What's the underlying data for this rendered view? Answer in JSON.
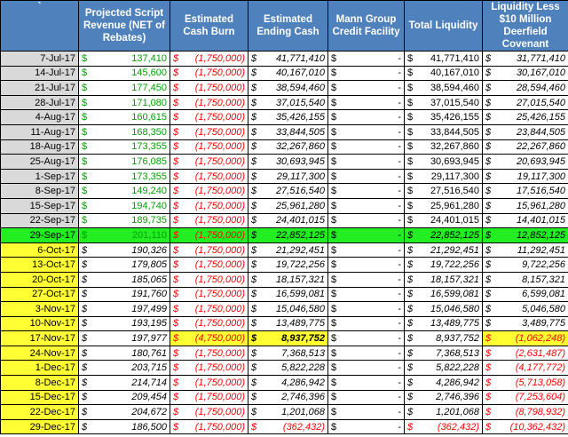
{
  "headers": {
    "corner": "`",
    "revenue": "Projected Script Revenue (NET of Rebates)",
    "burn": "Estimated Cash Burn",
    "ending": "Estimated Ending Cash",
    "mann": "Mann Group Credit Facility",
    "total": "Total Liquidity",
    "covenant": "Liquidity Less $10 Million Deerfield Covenant"
  },
  "currency_symbol": "$",
  "colors": {
    "header_blue": "#4f81bd",
    "history_gray": "#d9d9d9",
    "projection_yellow": "#ffff33",
    "current_green": "#22ee22",
    "revenue_green": "#00a000",
    "negative_red": "#ff0000"
  },
  "rows": [
    {
      "date": "7-Jul-17",
      "revenue": "137,410",
      "burn": "(1,750,000)",
      "ending": "41,771,410",
      "mann": "-",
      "total": "41,771,410",
      "covenant": "31,771,410"
    },
    {
      "date": "14-Jul-17",
      "revenue": "145,600",
      "burn": "(1,750,000)",
      "ending": "40,167,010",
      "mann": "-",
      "total": "40,167,010",
      "covenant": "30,167,010"
    },
    {
      "date": "21-Jul-17",
      "revenue": "177,450",
      "burn": "(1,750,000)",
      "ending": "38,594,460",
      "mann": "-",
      "total": "38,594,460",
      "covenant": "28,594,460"
    },
    {
      "date": "28-Jul-17",
      "revenue": "171,080",
      "burn": "(1,750,000)",
      "ending": "37,015,540",
      "mann": "-",
      "total": "37,015,540",
      "covenant": "27,015,540"
    },
    {
      "date": "4-Aug-17",
      "revenue": "160,615",
      "burn": "(1,750,000)",
      "ending": "35,426,155",
      "mann": "-",
      "total": "35,426,155",
      "covenant": "25,426,155"
    },
    {
      "date": "11-Aug-17",
      "revenue": "168,350",
      "burn": "(1,750,000)",
      "ending": "33,844,505",
      "mann": "-",
      "total": "33,844,505",
      "covenant": "23,844,505"
    },
    {
      "date": "18-Aug-17",
      "revenue": "173,355",
      "burn": "(1,750,000)",
      "ending": "32,267,860",
      "mann": "-",
      "total": "32,267,860",
      "covenant": "22,267,860"
    },
    {
      "date": "25-Aug-17",
      "revenue": "176,085",
      "burn": "(1,750,000)",
      "ending": "30,693,945",
      "mann": "-",
      "total": "30,693,945",
      "covenant": "20,693,945"
    },
    {
      "date": "1-Sep-17",
      "revenue": "173,355",
      "burn": "(1,750,000)",
      "ending": "29,117,300",
      "mann": "-",
      "total": "29,117,300",
      "covenant": "19,117,300"
    },
    {
      "date": "8-Sep-17",
      "revenue": "149,240",
      "burn": "(1,750,000)",
      "ending": "27,516,540",
      "mann": "-",
      "total": "27,516,540",
      "covenant": "17,516,540"
    },
    {
      "date": "15-Sep-17",
      "revenue": "194,740",
      "burn": "(1,750,000)",
      "ending": "25,961,280",
      "mann": "-",
      "total": "25,961,280",
      "covenant": "15,961,280"
    },
    {
      "date": "22-Sep-17",
      "revenue": "189,735",
      "burn": "(1,750,000)",
      "ending": "24,401,015",
      "mann": "-",
      "total": "24,401,015",
      "covenant": "14,401,015"
    },
    {
      "date": "29-Sep-17",
      "revenue": "201,110",
      "burn": "(1,750,000)",
      "ending": "22,852,125",
      "mann": "-",
      "total": "22,852,125",
      "covenant": "12,852,125"
    },
    {
      "date": "6-Oct-17",
      "revenue": "190,326",
      "burn": "(1,750,000)",
      "ending": "21,292,451",
      "mann": "-",
      "total": "21,292,451",
      "covenant": "11,292,451"
    },
    {
      "date": "13-Oct-17",
      "revenue": "179,805",
      "burn": "(1,750,000)",
      "ending": "19,722,256",
      "mann": "-",
      "total": "19,722,256",
      "covenant": "9,722,256"
    },
    {
      "date": "20-Oct-17",
      "revenue": "185,065",
      "burn": "(1,750,000)",
      "ending": "18,157,321",
      "mann": "-",
      "total": "18,157,321",
      "covenant": "8,157,321"
    },
    {
      "date": "27-Oct-17",
      "revenue": "191,760",
      "burn": "(1,750,000)",
      "ending": "16,599,081",
      "mann": "-",
      "total": "16,599,081",
      "covenant": "6,599,081"
    },
    {
      "date": "3-Nov-17",
      "revenue": "197,499",
      "burn": "(1,750,000)",
      "ending": "15,046,580",
      "mann": "-",
      "total": "15,046,580",
      "covenant": "5,046,580"
    },
    {
      "date": "10-Nov-17",
      "revenue": "193,195",
      "burn": "(1,750,000)",
      "ending": "13,489,775",
      "mann": "-",
      "total": "13,489,775",
      "covenant": "3,489,775"
    },
    {
      "date": "17-Nov-17",
      "revenue": "197,977",
      "burn": "(4,750,000)",
      "ending": "8,937,752",
      "mann": "-",
      "total": "8,937,752",
      "covenant": "(1,062,248)"
    },
    {
      "date": "24-Nov-17",
      "revenue": "180,761",
      "burn": "(1,750,000)",
      "ending": "7,368,513",
      "mann": "-",
      "total": "7,368,513",
      "covenant": "(2,631,487)"
    },
    {
      "date": "1-Dec-17",
      "revenue": "203,715",
      "burn": "(1,750,000)",
      "ending": "5,822,228",
      "mann": "-",
      "total": "5,822,228",
      "covenant": "(4,177,772)"
    },
    {
      "date": "8-Dec-17",
      "revenue": "214,714",
      "burn": "(1,750,000)",
      "ending": "4,286,942",
      "mann": "-",
      "total": "4,286,942",
      "covenant": "(5,713,058)"
    },
    {
      "date": "15-Dec-17",
      "revenue": "209,454",
      "burn": "(1,750,000)",
      "ending": "2,746,396",
      "mann": "-",
      "total": "2,746,396",
      "covenant": "(7,253,604)"
    },
    {
      "date": "22-Dec-17",
      "revenue": "204,672",
      "burn": "(1,750,000)",
      "ending": "1,201,068",
      "mann": "-",
      "total": "1,201,068",
      "covenant": "(8,798,932)"
    },
    {
      "date": "29-Dec-17",
      "revenue": "186,500",
      "burn": "(1,750,000)",
      "ending": "(362,432)",
      "mann": "-",
      "total": "(362,432)",
      "covenant": "(10,362,432)"
    }
  ]
}
